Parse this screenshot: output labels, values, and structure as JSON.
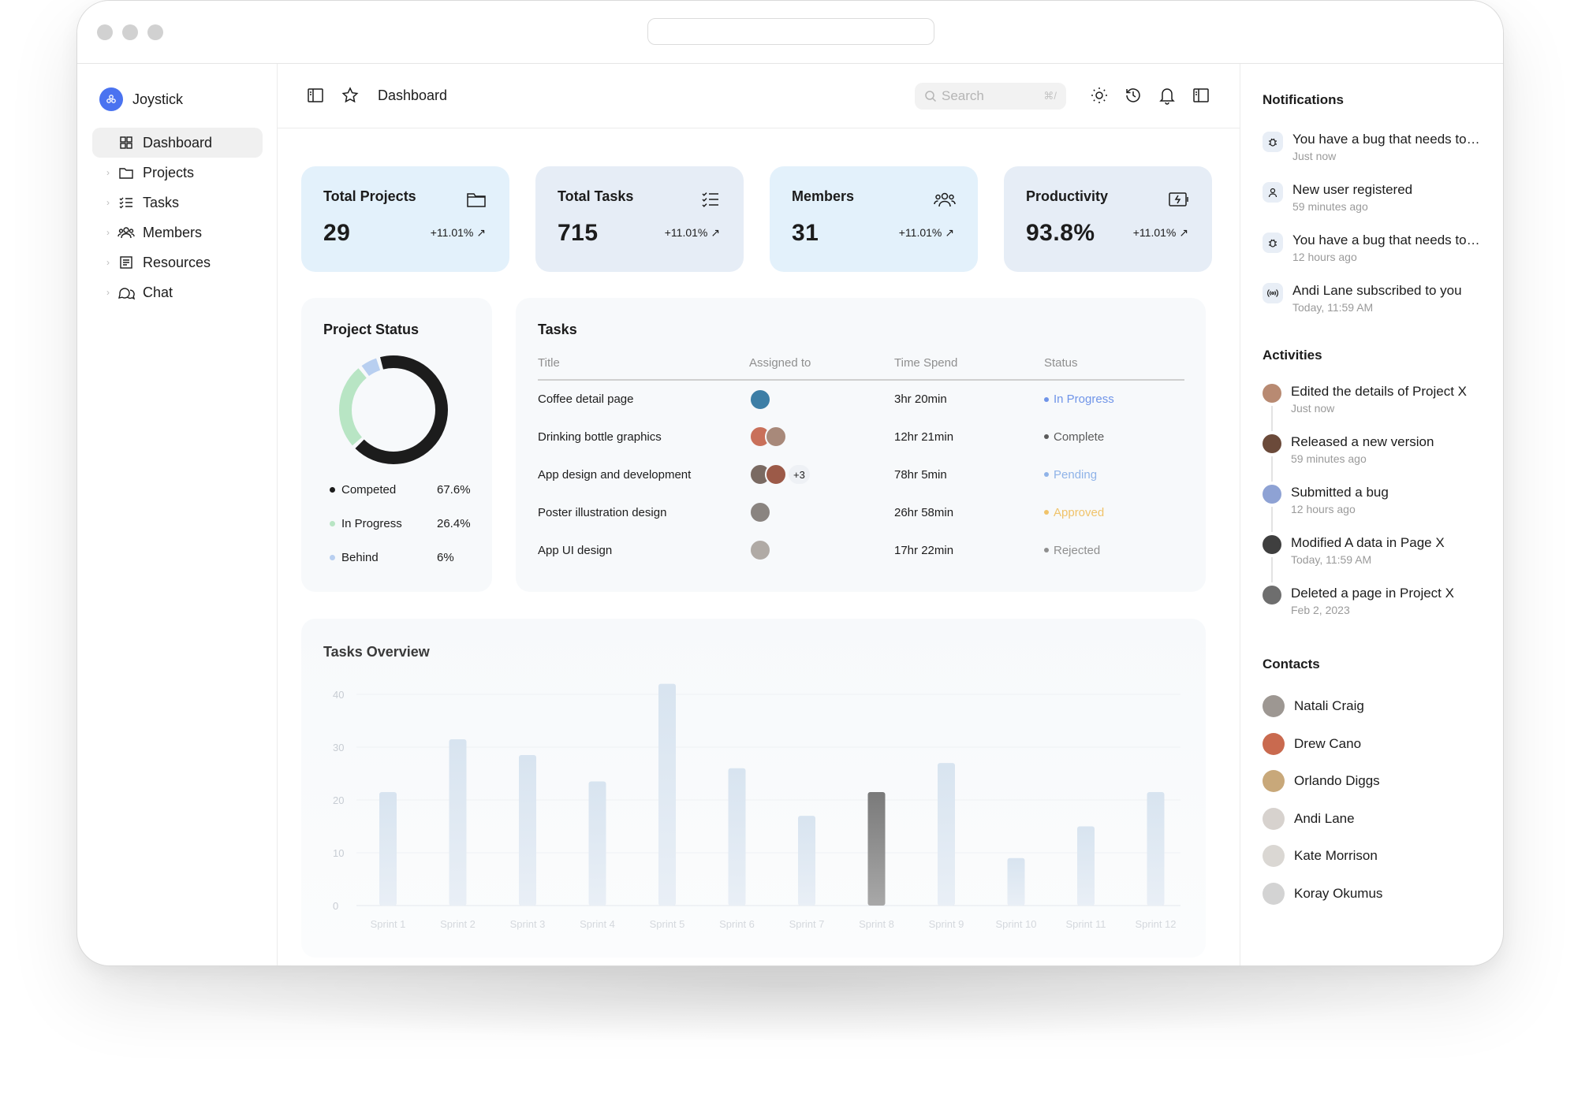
{
  "brand": {
    "name": "Joystick",
    "accent": "#4a73f0"
  },
  "sidebar": {
    "items": [
      {
        "label": "Dashboard",
        "icon": "dashboard-grid-icon"
      },
      {
        "label": "Projects",
        "icon": "folder-icon"
      },
      {
        "label": "Tasks",
        "icon": "checklist-icon"
      },
      {
        "label": "Members",
        "icon": "users-icon"
      },
      {
        "label": "Resources",
        "icon": "book-icon"
      },
      {
        "label": "Chat",
        "icon": "chat-icon"
      }
    ]
  },
  "header": {
    "title": "Dashboard",
    "search_placeholder": "Search",
    "search_shortcut": "⌘/"
  },
  "stats": [
    {
      "label": "Total Projects",
      "value": "29",
      "delta": "+11.01%",
      "icon": "folder-icon",
      "bg": "#e3f1fb"
    },
    {
      "label": "Total Tasks",
      "value": "715",
      "delta": "+11.01%",
      "icon": "checklist-icon",
      "bg": "#e6edf6"
    },
    {
      "label": "Members",
      "value": "31",
      "delta": "+11.01%",
      "icon": "users-icon",
      "bg": "#e3f1fb"
    },
    {
      "label": "Productivity",
      "value": "93.8%",
      "delta": "+11.01%",
      "icon": "battery-charging-icon",
      "bg": "#e6edf6"
    }
  ],
  "project_status": {
    "title": "Project Status",
    "legend": [
      {
        "label": "Competed",
        "value": "67.6%",
        "color": "#1c1c1c"
      },
      {
        "label": "In Progress",
        "value": "26.4%",
        "color": "#b8e5c4"
      },
      {
        "label": "Behind",
        "value": "6%",
        "color": "#b8cff0"
      }
    ]
  },
  "tasks": {
    "title": "Tasks",
    "columns": [
      "Title",
      "Assigned to",
      "Time Spend",
      "Status"
    ],
    "rows": [
      {
        "title": "Coffee detail page",
        "time": "3hr 20min",
        "status": "In Progress",
        "status_color": "#6f94e8",
        "avatars": [
          "#3d7ea6"
        ],
        "more": ""
      },
      {
        "title": "Drinking bottle graphics",
        "time": "12hr 21min",
        "status": "Complete",
        "status_color": "#5b5b5b",
        "avatars": [
          "#c9705a",
          "#a8897a"
        ],
        "more": ""
      },
      {
        "title": "App design and development",
        "time": "78hr 5min",
        "status": "Pending",
        "status_color": "#8fb3e8",
        "avatars": [
          "#7a6a62",
          "#9c5a48"
        ],
        "more": "+3"
      },
      {
        "title": "Poster illustration design",
        "time": "26hr 58min",
        "status": "Approved",
        "status_color": "#f0c36a",
        "avatars": [
          "#8a8480"
        ],
        "more": ""
      },
      {
        "title": "App UI design",
        "time": "17hr 22min",
        "status": "Rejected",
        "status_color": "#8f8f8f",
        "avatars": [
          "#b0aaa5"
        ],
        "more": ""
      }
    ]
  },
  "chart_data": {
    "type": "bar",
    "title": "Tasks Overview",
    "categories": [
      "Sprint 1",
      "Sprint 2",
      "Sprint 3",
      "Sprint 4",
      "Sprint 5",
      "Sprint 6",
      "Sprint 7",
      "Sprint 8",
      "Sprint 9",
      "Sprint 10",
      "Sprint 11",
      "Sprint 12"
    ],
    "values": [
      21.5,
      31.5,
      28.5,
      23.5,
      42,
      26,
      17,
      21.5,
      27,
      9,
      15,
      21.5
    ],
    "highlight_index": 7,
    "yticks": [
      0,
      10,
      20,
      30,
      40
    ],
    "ylim": [
      0,
      42
    ],
    "xlabel": "",
    "ylabel": ""
  },
  "notifications": {
    "title": "Notifications",
    "items": [
      {
        "text": "You have a bug that needs to be fixed",
        "time": "Just now",
        "icon": "bug-icon"
      },
      {
        "text": "New user registered",
        "time": "59 minutes ago",
        "icon": "user-icon"
      },
      {
        "text": "You have a bug that needs to be fixed",
        "time": "12 hours ago",
        "icon": "bug-icon"
      },
      {
        "text": "Andi Lane subscribed to you",
        "time": "Today, 11:59 AM",
        "icon": "broadcast-icon"
      }
    ]
  },
  "activities": {
    "title": "Activities",
    "items": [
      {
        "text": "Edited the details of Project X",
        "time": "Just now",
        "color": "#b88a72"
      },
      {
        "text": "Released a new version",
        "time": "59 minutes ago",
        "color": "#6b4a3a"
      },
      {
        "text": "Submitted a bug",
        "time": "12 hours ago",
        "color": "#8ea2d4"
      },
      {
        "text": "Modified A data in Page X",
        "time": "Today, 11:59 AM",
        "color": "#3f3f3f"
      },
      {
        "text": "Deleted a page in Project X",
        "time": "Feb 2, 2023",
        "color": "#6e6e6e"
      }
    ]
  },
  "contacts": {
    "title": "Contacts",
    "items": [
      {
        "name": "Natali Craig",
        "color": "#9d9792"
      },
      {
        "name": "Drew Cano",
        "color": "#c96a4f"
      },
      {
        "name": "Orlando Diggs",
        "color": "#c8a87a"
      },
      {
        "name": "Andi Lane",
        "color": "#d7d2ce"
      },
      {
        "name": "Kate Morrison",
        "color": "#dad7d3"
      },
      {
        "name": "Koray Okumus",
        "color": "#d3d3d3"
      }
    ]
  }
}
